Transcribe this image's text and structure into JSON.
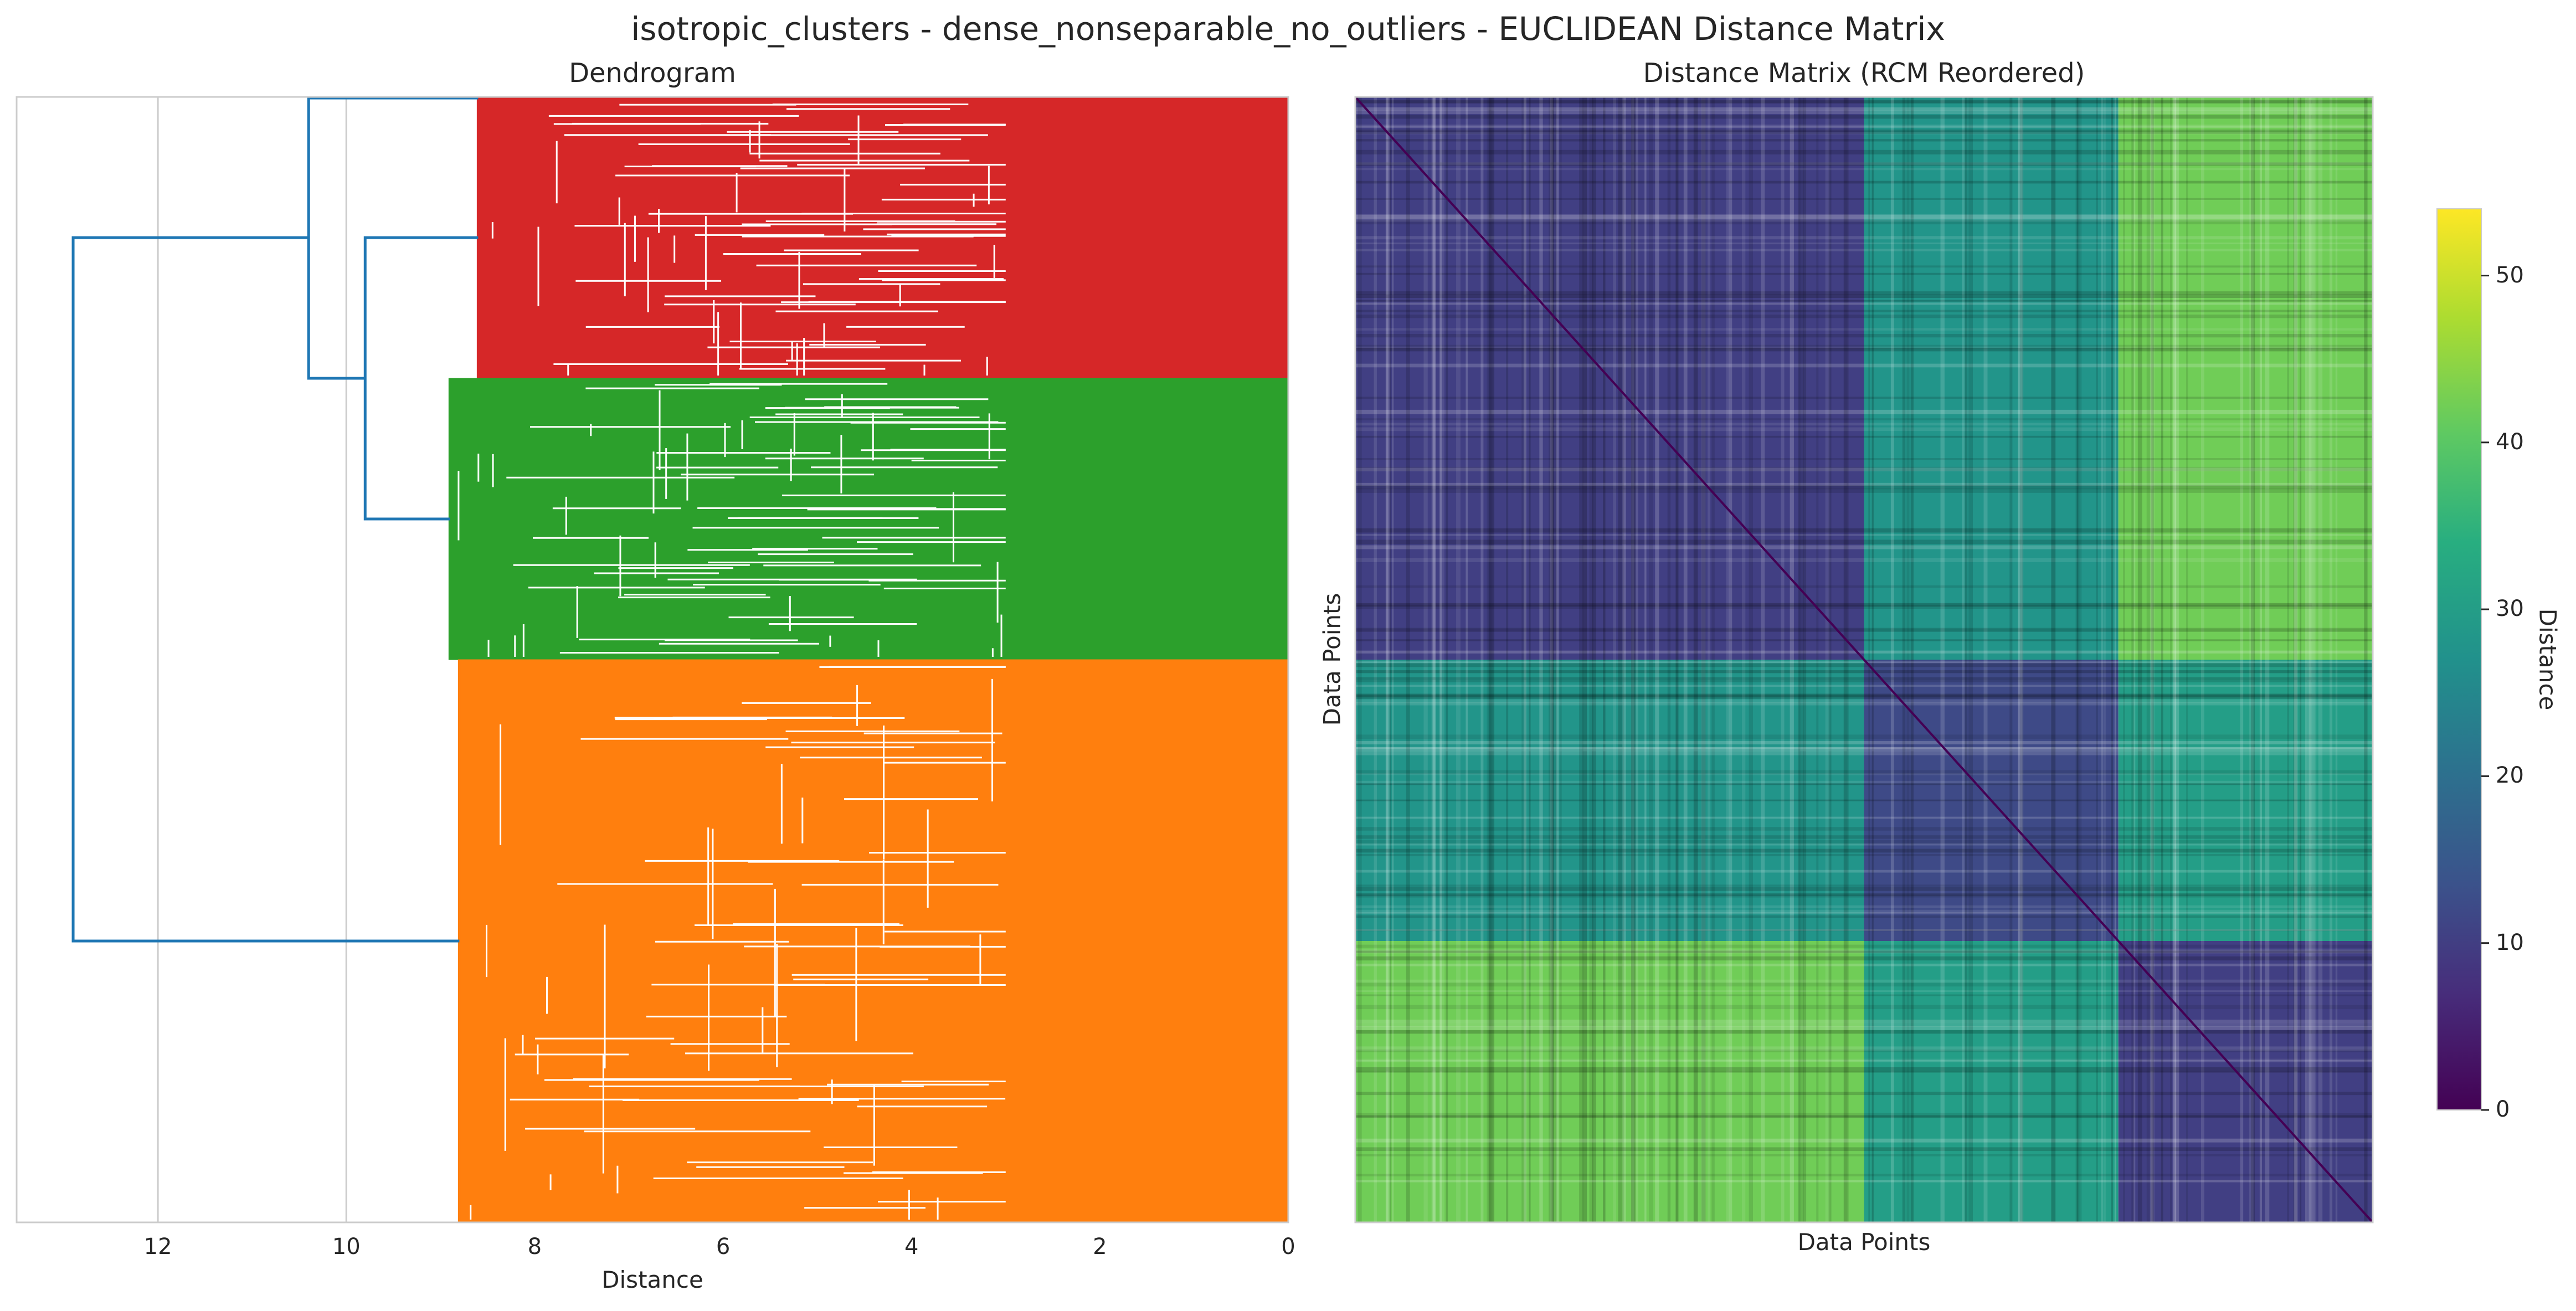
{
  "figure": {
    "title": "isotropic_clusters - dense_nonseparable_no_outliers - EUCLIDEAN Distance Matrix"
  },
  "dendrogram": {
    "title": "Dendrogram",
    "xlabel": "Distance",
    "x_ticks": [
      "12",
      "10",
      "8",
      "6",
      "4",
      "2",
      "0"
    ],
    "colors": {
      "link": "#1f77b4",
      "red": "#d62728",
      "green": "#2ca02c",
      "orange": "#ff7f0e",
      "grid": "#cccccc"
    }
  },
  "heatmap": {
    "title": "Distance Matrix (RCM Reordered)",
    "xlabel": "Data Points",
    "ylabel": "Data Points",
    "colorbar_label": "Distance",
    "colorbar_ticks": [
      "0",
      "10",
      "20",
      "30",
      "40",
      "50"
    ],
    "colormap": "viridis"
  },
  "chart_data": [
    {
      "type": "dendrogram",
      "title": "Dendrogram",
      "xlabel": "Distance",
      "xlim": [
        13.5,
        0
      ],
      "x_ticks": [
        12,
        10,
        8,
        6,
        4,
        2,
        0
      ],
      "grid": true,
      "clusters": [
        {
          "color": "#d62728",
          "fraction": 0.25,
          "merge_height": 8.6
        },
        {
          "color": "#2ca02c",
          "fraction": 0.25,
          "merge_height": 8.9
        },
        {
          "color": "#ff7f0e",
          "fraction": 0.5,
          "merge_height": 8.8
        }
      ],
      "links": [
        {
          "children": [
            "red",
            "green"
          ],
          "height": 9.8
        },
        {
          "children": [
            "red+green",
            "root_top"
          ],
          "height": 10.4
        },
        {
          "children": [
            "top",
            "orange"
          ],
          "height": 12.9
        }
      ]
    },
    {
      "type": "heatmap",
      "title": "Distance Matrix (RCM Reordered)",
      "xlabel": "Data Points",
      "ylabel": "Data Points",
      "colorbar": {
        "label": "Distance",
        "range": [
          0,
          54
        ],
        "ticks": [
          0,
          10,
          20,
          30,
          40,
          50
        ]
      },
      "blocks": [
        {
          "name": "A",
          "fraction": 0.5
        },
        {
          "name": "B",
          "fraction": 0.25
        },
        {
          "name": "C",
          "fraction": 0.25
        }
      ],
      "block_mean_distance": [
        [
          10,
          28,
          42
        ],
        [
          28,
          12,
          30
        ],
        [
          42,
          30,
          10
        ]
      ]
    }
  ]
}
